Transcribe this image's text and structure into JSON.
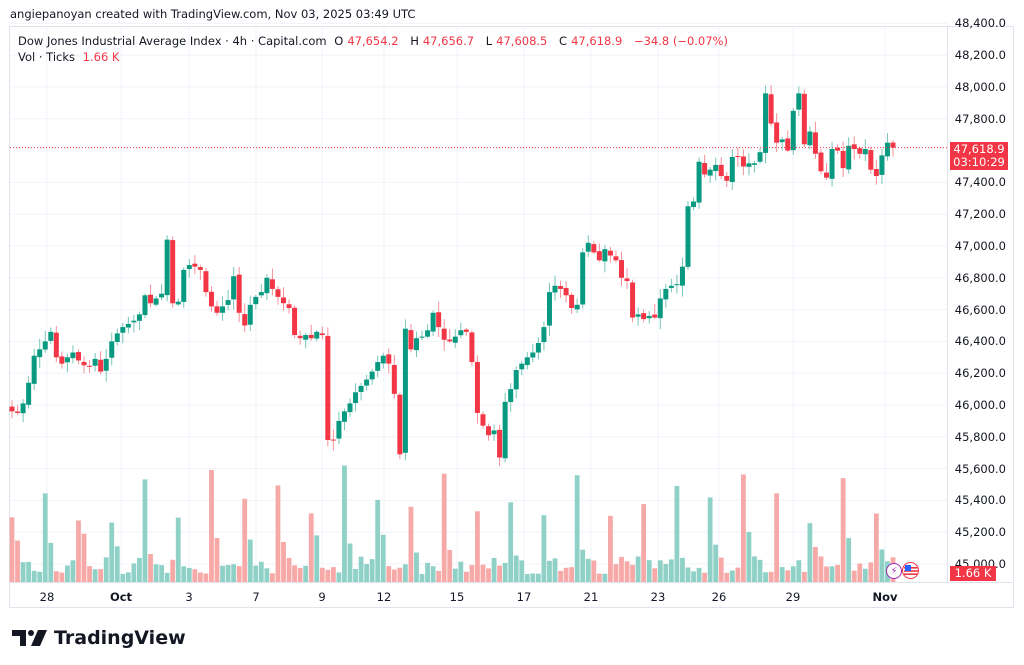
{
  "credit": "angiepanoyan created with TradingView.com, Nov 03, 2025 03:49 UTC",
  "legend": {
    "symbol": "Dow Jones Industrial Average Index · 4h · Capital.com",
    "o_label": "O",
    "o": "47,654.2",
    "h_label": "H",
    "h": "47,656.7",
    "l_label": "L",
    "l": "47,608.5",
    "c_label": "C",
    "c": "47,618.9",
    "change": "−34.8 (−0.07%)",
    "vol_label": "Vol · Ticks",
    "vol_value": "1.66 K"
  },
  "price_axis": {
    "labels": [
      "48,400.0",
      "48,200.0",
      "48,000.0",
      "47,800.0",
      "47,400.0",
      "47,200.0",
      "47,000.0",
      "46,800.0",
      "46,600.0",
      "46,400.0",
      "46,200.0",
      "46,000.0",
      "45,800.0",
      "45,600.0",
      "45,400.0",
      "45,200.0",
      "45,000.0"
    ],
    "current_price": "47,618.9",
    "countdown": "03:10:29",
    "volume_tag": "1.66 K"
  },
  "time_axis": {
    "labels": [
      "28",
      "Oct",
      "3",
      "7",
      "9",
      "12",
      "15",
      "17",
      "21",
      "23",
      "26",
      "29",
      "Nov"
    ]
  },
  "brand": {
    "name": "TradingView"
  },
  "colors": {
    "up": "#089981",
    "down": "#f23645",
    "vol_up": "#8fd1c7",
    "vol_down": "#f7a9a7",
    "grid": "#f0f3fa"
  },
  "chart_data": {
    "type": "candlestick",
    "title": "Dow Jones Industrial Average Index · 4h · Capital.com",
    "xlabel": "",
    "ylabel": "Price",
    "ylim": [
      44950,
      48420
    ],
    "x_ticks": [
      "28",
      "Oct",
      "3",
      "7",
      "9",
      "12",
      "15",
      "17",
      "21",
      "23",
      "26",
      "29",
      "Nov"
    ],
    "y_ticks": [
      45000,
      45200,
      45400,
      45600,
      45800,
      46000,
      46200,
      46400,
      46600,
      46800,
      47000,
      47200,
      47400,
      47600,
      47800,
      48000,
      48200,
      48400
    ],
    "last": {
      "open": 47654.2,
      "high": 47656.7,
      "low": 47608.5,
      "close": 47618.9,
      "change": -34.8,
      "change_pct": -0.07,
      "volume": "1.66K"
    },
    "closes": [
      45960,
      45950,
      46010,
      46140,
      46310,
      46350,
      46400,
      46460,
      46300,
      46260,
      46300,
      46330,
      46280,
      46250,
      46240,
      46290,
      46210,
      46290,
      46400,
      46450,
      46490,
      46510,
      46530,
      46570,
      46690,
      46640,
      46670,
      46700,
      47040,
      46640,
      46650,
      46850,
      46880,
      46870,
      46850,
      46710,
      46620,
      46580,
      46620,
      46660,
      46810,
      46580,
      46500,
      46630,
      46680,
      46710,
      46800,
      46730,
      46680,
      46640,
      46610,
      46440,
      46420,
      46440,
      46420,
      46460,
      46440,
      45780,
      45780,
      45900,
      45960,
      46010,
      46080,
      46120,
      46160,
      46210,
      46270,
      46310,
      46260,
      46070,
      45690,
      46480,
      46350,
      46420,
      46430,
      46470,
      46580,
      46490,
      46410,
      46400,
      46430,
      46470,
      46460,
      46270,
      45950,
      45870,
      45810,
      45840,
      45670,
      46020,
      46100,
      46220,
      46260,
      46300,
      46330,
      46390,
      46490,
      46710,
      46750,
      46730,
      46690,
      46610,
      46630,
      46960,
      47020,
      46960,
      46910,
      46980,
      46940,
      46910,
      46800,
      46780,
      46550,
      46570,
      46540,
      46560,
      46550,
      46670,
      46730,
      46750,
      46760,
      46870,
      47250,
      47280,
      47530,
      47450,
      47480,
      47510,
      47440,
      47410,
      47560,
      47560,
      47500,
      47520,
      47520,
      47590,
      47960,
      47770,
      47650,
      47670,
      47600,
      47850,
      47960,
      47640,
      47720,
      47580,
      47470,
      47430,
      47610,
      47600,
      47490,
      47630,
      47610,
      47580,
      47610,
      47480,
      47440,
      47570,
      47650,
      47619
    ],
    "volume_note": "volume histogram in lower pane, colored by candle direction"
  }
}
